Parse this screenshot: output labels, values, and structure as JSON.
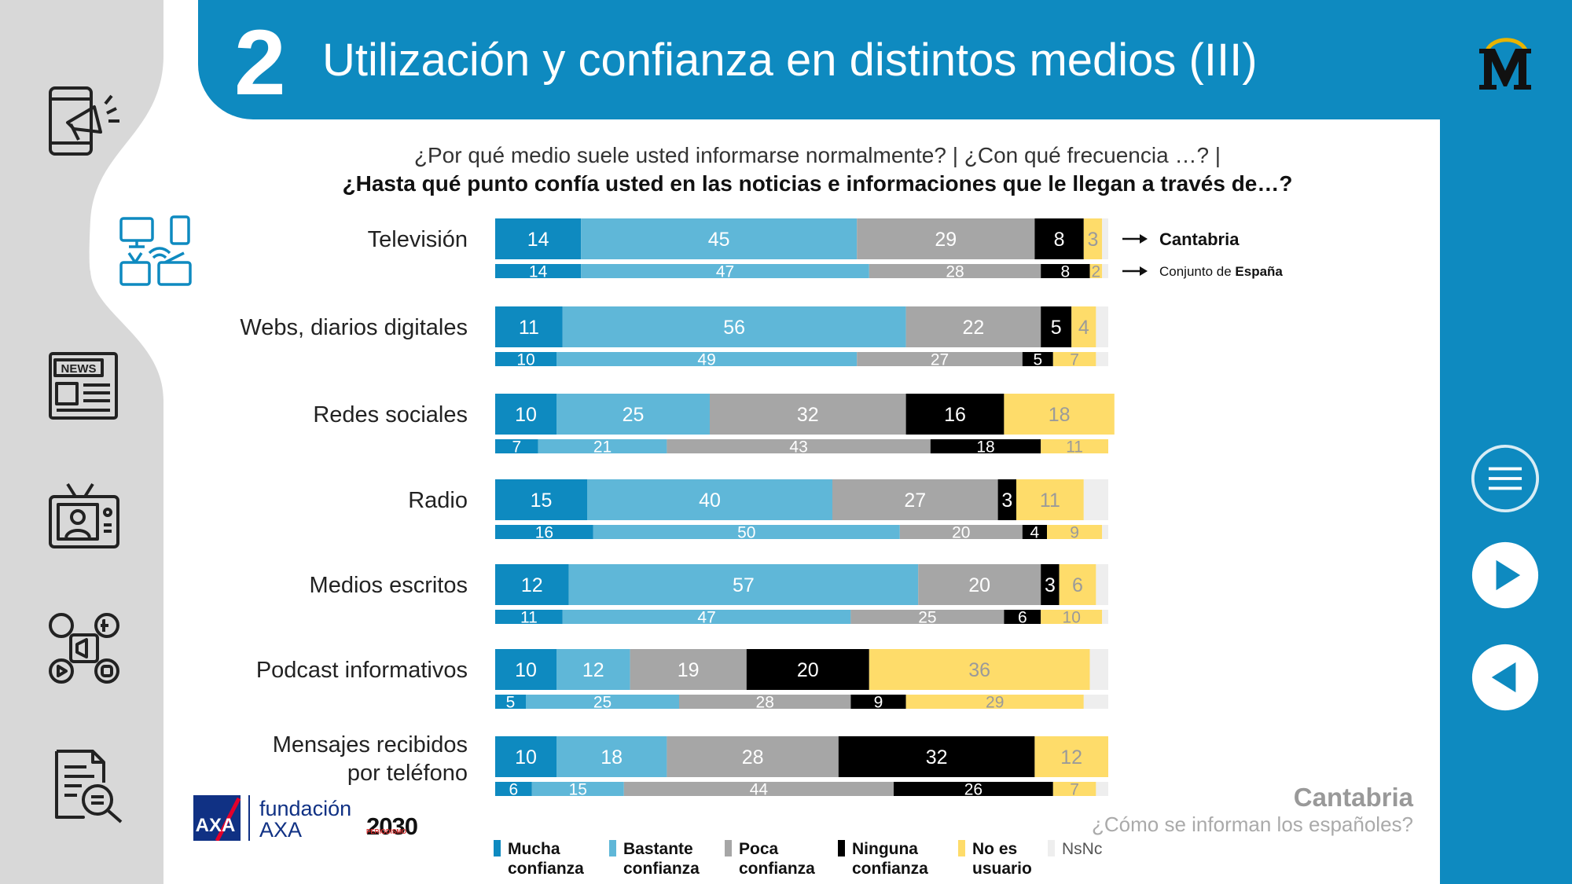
{
  "header": {
    "number": "2",
    "title": "Utilización y confianza en distintos medios (III)"
  },
  "question": {
    "line1": "¿Por qué medio suele usted informarse normalmente? | ¿Con qué frecuencia …? |",
    "line2": "¿Hasta qué punto confía usted en las noticias e informaciones que le llegan a través de…?"
  },
  "annotations": {
    "primary": "Cantabria",
    "secondary_prefix": "Conjunto de ",
    "secondary_bold": "España"
  },
  "footer": {
    "region": "Cantabria",
    "subtitle": "¿Cómo se informan los españoles?"
  },
  "logos": {
    "axa": "AXA",
    "fundacion": "fundación",
    "fundacion_axa": "AXA",
    "periodismo": "PERIODISMO",
    "p2030": "2030"
  },
  "sidebar_icons": [
    "mobile-megaphone-icon",
    "devices-icon",
    "newspaper-icon",
    "tv-presenter-icon",
    "social-media-icon",
    "document-search-icon"
  ],
  "nav_icons": [
    "menu-icon",
    "next-icon",
    "previous-icon"
  ],
  "colors": {
    "header": "#0e8ac0",
    "mucha": "#0e8ac0",
    "bastante": "#5fb7d8",
    "poca": "#a6a6a6",
    "ninguna": "#000000",
    "no_usuario": "#fedc6a",
    "nsnc": "#eeeeee"
  },
  "chart_data": {
    "type": "bar",
    "orientation": "horizontal",
    "stacked": true,
    "xlim": [
      0,
      100
    ],
    "categories": [
      "Televisión",
      "Webs, diarios digitales",
      "Redes sociales",
      "Radio",
      "Medios escritos",
      "Podcast informativos",
      "Mensajes recibidos por teléfono"
    ],
    "category_lines": [
      [
        "Televisión"
      ],
      [
        "Webs, diarios digitales"
      ],
      [
        "Redes sociales"
      ],
      [
        "Radio"
      ],
      [
        "Medios escritos"
      ],
      [
        "Podcast informativos"
      ],
      [
        "Mensajes recibidos",
        "por teléfono"
      ]
    ],
    "legend": [
      {
        "key": "mucha",
        "lines": [
          "Mucha",
          "confianza"
        ]
      },
      {
        "key": "bastante",
        "lines": [
          "Bastante",
          "confianza"
        ]
      },
      {
        "key": "poca",
        "lines": [
          "Poca",
          "confianza"
        ]
      },
      {
        "key": "ninguna",
        "lines": [
          "Ninguna",
          "confianza"
        ]
      },
      {
        "key": "no_usuario",
        "lines": [
          "No es",
          "usuario"
        ]
      },
      {
        "key": "nsnc",
        "lines": [
          "NsNc"
        ]
      }
    ],
    "series": [
      {
        "name": "Cantabria",
        "rows": [
          [
            14,
            45,
            29,
            8,
            3,
            1
          ],
          [
            11,
            56,
            22,
            5,
            4,
            2
          ],
          [
            10,
            25,
            32,
            16,
            18,
            0
          ],
          [
            15,
            40,
            27,
            3,
            11,
            4
          ],
          [
            12,
            57,
            20,
            3,
            6,
            2
          ],
          [
            10,
            12,
            19,
            20,
            36,
            3
          ],
          [
            10,
            18,
            28,
            32,
            12,
            0
          ]
        ]
      },
      {
        "name": "Conjunto de España",
        "rows": [
          [
            14,
            47,
            28,
            8,
            2,
            1
          ],
          [
            10,
            49,
            27,
            5,
            7,
            2
          ],
          [
            7,
            21,
            43,
            18,
            11,
            0
          ],
          [
            16,
            50,
            20,
            4,
            9,
            1
          ],
          [
            11,
            47,
            25,
            6,
            10,
            1
          ],
          [
            5,
            25,
            28,
            9,
            29,
            4
          ],
          [
            6,
            15,
            44,
            26,
            7,
            2
          ]
        ]
      }
    ]
  }
}
